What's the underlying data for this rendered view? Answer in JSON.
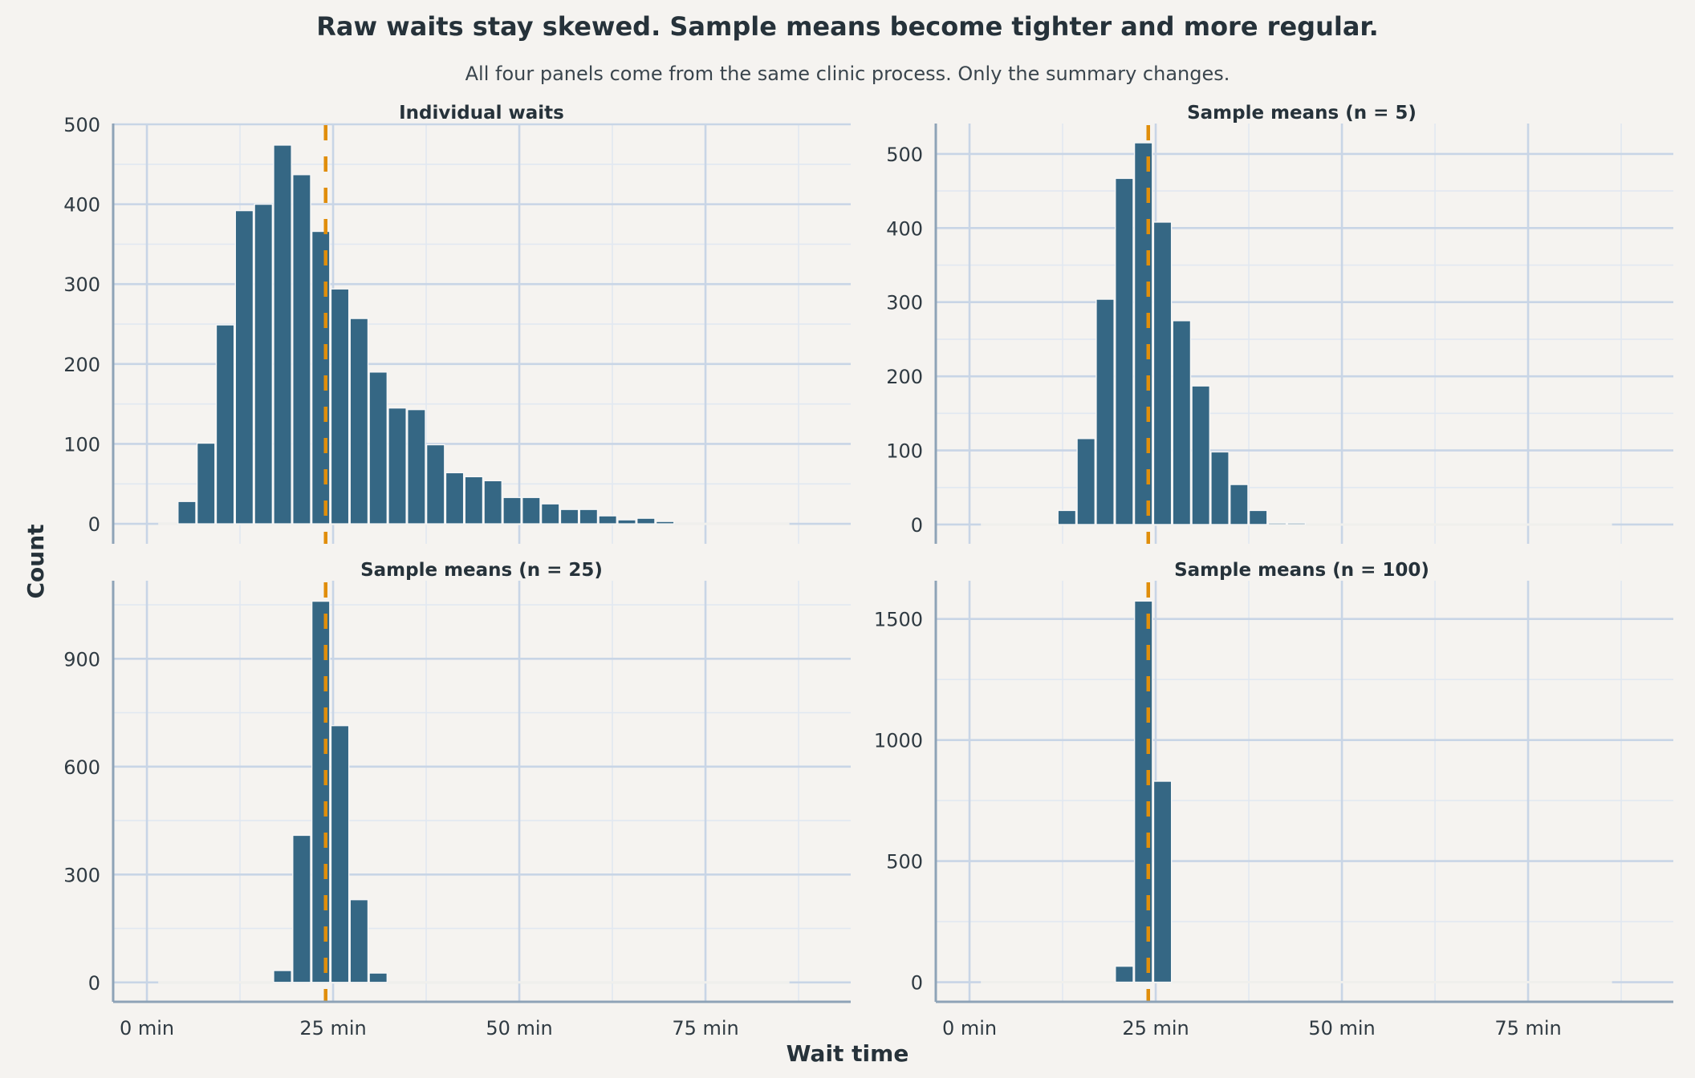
{
  "colors": {
    "bar": "#356784",
    "bar_edge": "#f7f7f7",
    "mean_line": "#e08e0b",
    "background": "#f5f3f0",
    "grid_major": "#c8d5e6",
    "grid_minor": "#e1e8f1",
    "axis": "#8ea3b7",
    "text": "#26323a"
  },
  "chart_data": {
    "type": "bar",
    "subtype": "faceted-histogram",
    "title": "Raw waits stay skewed. Sample means become tighter and more regular.",
    "subtitle": "All four panels come from the same clinic process. Only the summary changes.",
    "xlabel": "Wait time",
    "ylabel": "Count",
    "xlim": [
      -4.53,
      94.5
    ],
    "x_ticks": [
      0,
      25,
      50,
      75
    ],
    "x_tick_labels": [
      "0 min",
      "25 min",
      "50 min",
      "75 min"
    ],
    "grid": true,
    "bin_width": 2.568,
    "bin_range": [
      1.52,
      86.27
    ],
    "mean_line_style": "dashed",
    "panels": [
      {
        "title": "Individual waits",
        "mean": 24.0,
        "first_bin_start": 4.09,
        "counts": [
          28,
          101,
          249,
          392,
          400,
          474,
          437,
          366,
          294,
          257,
          190,
          145,
          143,
          99,
          64,
          59,
          54,
          33,
          33,
          25,
          18,
          18,
          10,
          5,
          7,
          3
        ],
        "ylim": [
          -25,
          501
        ],
        "y_ticks": [
          0,
          100,
          200,
          300,
          400,
          500
        ],
        "y_tick_labels": [
          "0",
          "100",
          "200",
          "300",
          "400",
          "500"
        ]
      },
      {
        "title": "Sample means (n = 5)",
        "mean": 24.0,
        "first_bin_start": 11.79,
        "counts": [
          19,
          116,
          304,
          467,
          515,
          408,
          275,
          187,
          98,
          54,
          19,
          2,
          2
        ],
        "ylim": [
          -26,
          541
        ],
        "y_ticks": [
          0,
          100,
          200,
          300,
          400,
          500
        ],
        "y_tick_labels": [
          "0",
          "100",
          "200",
          "300",
          "400",
          "500"
        ]
      },
      {
        "title": "Sample means (n = 25)",
        "mean": 24.0,
        "first_bin_start": 16.93,
        "counts": [
          33,
          409,
          1060,
          714,
          230,
          26
        ],
        "ylim": [
          -54,
          1117
        ],
        "y_ticks": [
          0,
          300,
          600,
          900
        ],
        "y_tick_labels": [
          "0",
          "300",
          "600",
          "900"
        ]
      },
      {
        "title": "Sample means (n = 100)",
        "mean": 24.0,
        "first_bin_start": 19.5,
        "counts": [
          66,
          1574,
          830
        ],
        "ylim": [
          -81,
          1658
        ],
        "y_ticks": [
          0,
          500,
          1000,
          1500
        ],
        "y_tick_labels": [
          "0",
          "500",
          "1000",
          "1500"
        ]
      }
    ]
  }
}
